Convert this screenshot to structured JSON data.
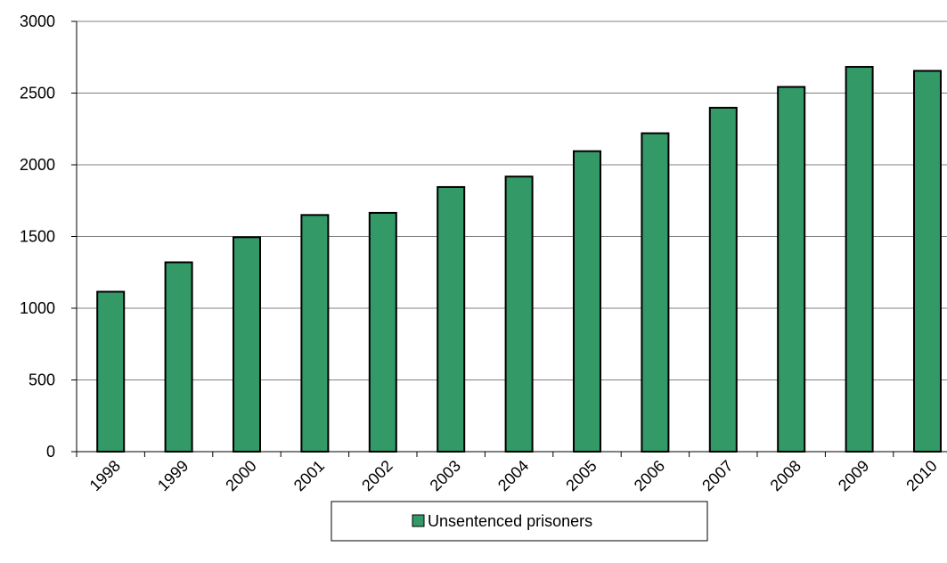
{
  "chart_data": {
    "type": "bar",
    "title": "",
    "xlabel": "",
    "ylabel": "",
    "categories": [
      "1998",
      "1999",
      "2000",
      "2001",
      "2002",
      "2003",
      "2004",
      "2005",
      "2006",
      "2007",
      "2008",
      "2009",
      "2010"
    ],
    "series": [
      {
        "name": "Unsentenced prisoners",
        "values": [
          1115,
          1320,
          1495,
          1650,
          1665,
          1845,
          1918,
          2095,
          2220,
          2398,
          2543,
          2683,
          2655
        ]
      }
    ],
    "ylim": [
      0,
      3000
    ],
    "yticks": [
      0,
      500,
      1000,
      1500,
      2000,
      2500,
      3000
    ],
    "grid": "horizontal",
    "legend_position": "bottom",
    "colors": {
      "bar_fill": "#339966",
      "bar_stroke": "#000000",
      "grid": "#808080",
      "axis": "#000000"
    }
  }
}
